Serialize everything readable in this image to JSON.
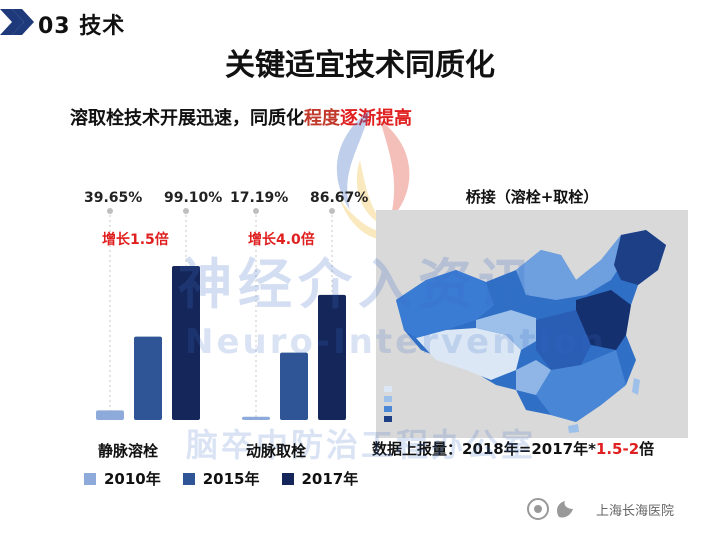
{
  "header": {
    "section": "03 技术"
  },
  "title": "关键适宜技术同质化",
  "subtitle": {
    "part1": "溶取栓技术开展迅速，同质化",
    "part2": "程度",
    "part3": "逐渐提高"
  },
  "chart_data": {
    "type": "bar",
    "categories": [
      "静脉溶栓",
      "动脉取栓"
    ],
    "series": [
      {
        "name": "2010年",
        "values": [
          3,
          1
        ]
      },
      {
        "name": "2015年",
        "values": [
          26,
          21
        ]
      },
      {
        "name": "2017年",
        "values": [
          48,
          39
        ]
      }
    ],
    "annotations": {
      "静脉溶栓": {
        "pct_a": "39.65%",
        "pct_b": "99.10%",
        "growth": "增长1.5倍"
      },
      "动脉取栓": {
        "pct_a": "17.19%",
        "pct_b": "86.67%",
        "growth": "增长4.0倍"
      }
    },
    "colors": [
      "#8eaadb",
      "#2f5597",
      "#15275a"
    ]
  },
  "legend": {
    "items": [
      "2010年",
      "2015年",
      "2017年"
    ]
  },
  "map": {
    "title": "桥接（溶栓+取栓）",
    "note_prefix": "数据上报量：2018年=2017年*",
    "note_highlight": "1.5-2",
    "note_suffix": "倍"
  },
  "watermark": {
    "line1": "神经介入资讯",
    "line2": "Neuro-Intervention",
    "line3": "脑卒中防治工程办公室"
  },
  "footer": {
    "hospital": "上海长海医院"
  }
}
